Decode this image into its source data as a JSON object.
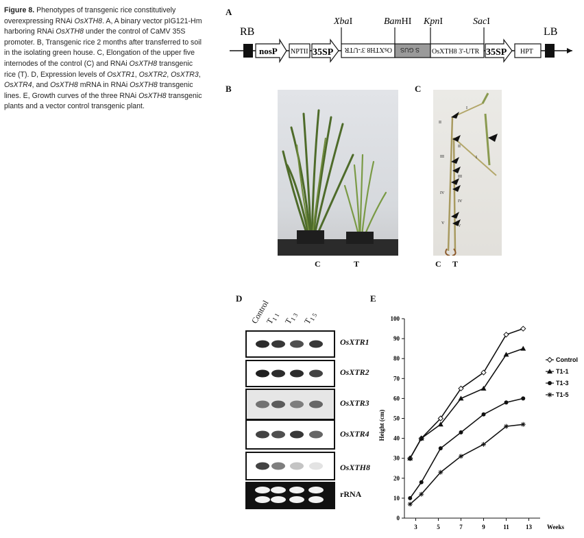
{
  "caption": {
    "figure_label": "Figure 8.",
    "segments": [
      {
        "t": " Phenotypes of transgenic rice constitutively overexpressing RNAi ",
        "i": false
      },
      {
        "t": "OsXTH8",
        "i": true
      },
      {
        "t": ". A, A binary vector pIG121-Hm harboring RNAi ",
        "i": false
      },
      {
        "t": "OsXTH8",
        "i": true
      },
      {
        "t": " under the control of CaMV 35S promoter. B, Transgenic rice 2 months after transferred to soil in the isolating green house. C, Elongation of the upper five internodes of the control (C) and RNAi ",
        "i": false
      },
      {
        "t": "OsXTH8",
        "i": true
      },
      {
        "t": " transgenic rice (T). D, Expression levels of ",
        "i": false
      },
      {
        "t": "OsXTR1",
        "i": true
      },
      {
        "t": ", ",
        "i": false
      },
      {
        "t": "OsXTR2",
        "i": true
      },
      {
        "t": ", ",
        "i": false
      },
      {
        "t": "OsXTR3",
        "i": true
      },
      {
        "t": ", ",
        "i": false
      },
      {
        "t": "OsXTR4",
        "i": true
      },
      {
        "t": ", and ",
        "i": false
      },
      {
        "t": "OsXTH8",
        "i": true
      },
      {
        "t": " mRNA in RNAi ",
        "i": false
      },
      {
        "t": "OsXTH8",
        "i": true
      },
      {
        "t": " transgenic lines. E, Growth curves of the three RNAi ",
        "i": false
      },
      {
        "t": "OsXTH8",
        "i": true
      },
      {
        "t": " transgenic plants and a vector control transgenic plant.",
        "i": false
      }
    ]
  },
  "panels": {
    "a": "A",
    "b": "B",
    "c": "C",
    "d": "D",
    "e": "E"
  },
  "vector": {
    "rb": "RB",
    "lb": "LB",
    "nos": "nosP",
    "nptii": "NPTII",
    "p35s_left": "35SP",
    "p35s_right": "35SP",
    "hpt": "HPT",
    "utr_rev": "OsXTH8 3'-UTR",
    "gus_rev": "S GUS",
    "utr_fwd": "OsXTH8 3'-UTR",
    "sites": {
      "xba": {
        "a": "Xba",
        "b": "I"
      },
      "bam": {
        "a": "Bam",
        "b": "HI"
      },
      "kpn": {
        "a": "Kpn",
        "b": "I"
      },
      "sac": {
        "a": "Sac",
        "b": "I"
      }
    }
  },
  "photo_b": {
    "left": "C",
    "right": "T"
  },
  "photo_c": {
    "left": "C",
    "right": "T",
    "internodes_control": [
      "I",
      "II",
      "III",
      "IV",
      "V"
    ],
    "internodes_t": [
      "I",
      "II",
      "III",
      "IV",
      "V"
    ]
  },
  "blot": {
    "lanes": [
      {
        "main": "Control",
        "sub": ""
      },
      {
        "main": "T",
        "sub": "1 1"
      },
      {
        "main": "T",
        "sub": "1 3"
      },
      {
        "main": "T",
        "sub": "1 5"
      }
    ],
    "genes": [
      "OsXTR1",
      "OsXTR2",
      "OsXTR3",
      "OsXTR4",
      "OsXTH8",
      "rRNA"
    ],
    "intensity": [
      [
        0.9,
        0.85,
        0.75,
        0.85
      ],
      [
        0.95,
        0.9,
        0.9,
        0.8
      ],
      [
        0.6,
        0.7,
        0.55,
        0.65
      ],
      [
        0.8,
        0.75,
        0.85,
        0.65
      ],
      [
        0.8,
        0.55,
        0.25,
        0.12
      ],
      [
        1.0,
        1.0,
        1.0,
        1.0
      ]
    ]
  },
  "chart_data": {
    "type": "line",
    "title": "",
    "xlabel": "Weeks",
    "ylabel": "Height (cm)",
    "xlim": [
      2,
      14
    ],
    "ylim": [
      0,
      100
    ],
    "xticks": [
      3,
      5,
      7,
      9,
      11,
      13
    ],
    "yticks": [
      0,
      10,
      20,
      30,
      40,
      50,
      60,
      70,
      80,
      90,
      100
    ],
    "x": [
      2.5,
      3.5,
      5.2,
      7,
      9,
      11,
      12.5
    ],
    "series": [
      {
        "name": "Control",
        "marker": "diamond",
        "values": [
          30,
          40,
          50,
          65,
          73,
          92,
          95
        ]
      },
      {
        "name": "T1-1",
        "marker": "triangle",
        "values": [
          30,
          40,
          47,
          60,
          65,
          82,
          85
        ]
      },
      {
        "name": "T1-3",
        "marker": "circle",
        "values": [
          10,
          18,
          35,
          43,
          52,
          58,
          60
        ]
      },
      {
        "name": "T1-5",
        "marker": "star",
        "values": [
          7,
          12,
          23,
          31,
          37,
          46,
          47
        ]
      }
    ],
    "legend": "right",
    "grid": false
  }
}
